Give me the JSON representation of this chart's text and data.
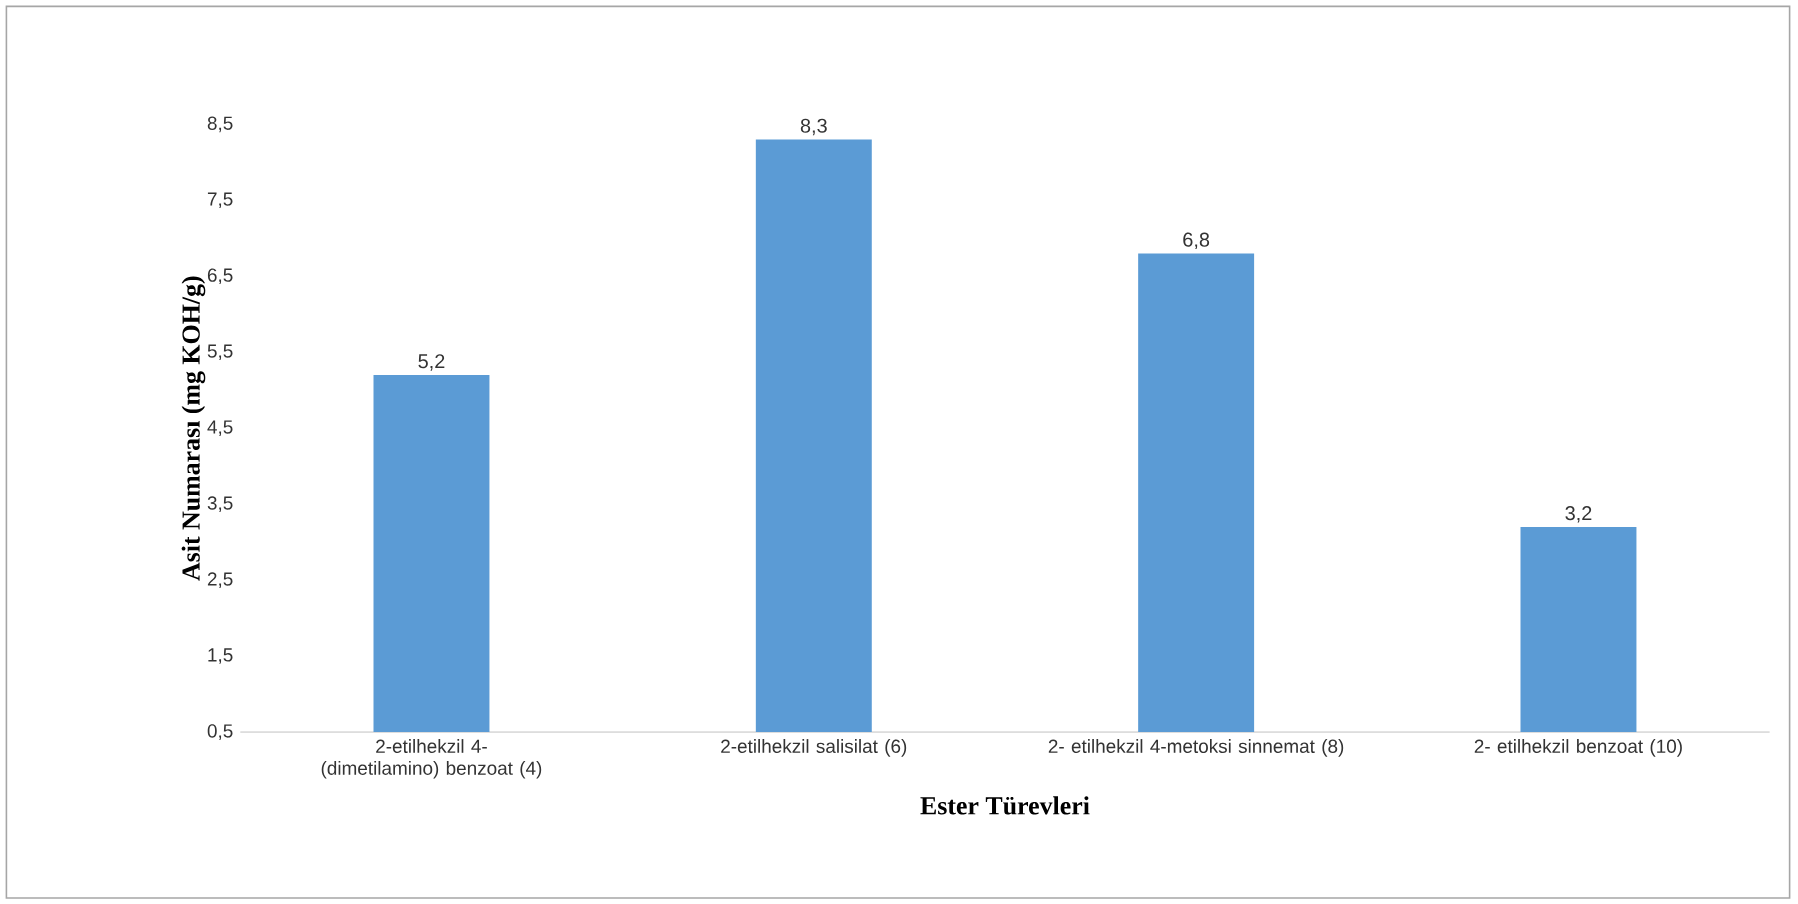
{
  "chart_data": {
    "type": "bar",
    "xlabel": "Ester Türevleri",
    "ylabel": "Asit Numarası (mg KOH/g)",
    "categories": [
      "2-etilhekzil 4-(dimetilamino) benzoat (4)",
      "2-etilhekzil salisilat (6)",
      "2- etilhekzil 4-metoksi sinnemat (8)",
      "2- etilhekzil benzoat (10)"
    ],
    "values": [
      5.2,
      8.3,
      6.8,
      3.2
    ],
    "value_labels": [
      "5,2",
      "8,3",
      "6,8",
      "3,2"
    ],
    "color": "#5b9bd5",
    "ylim": [
      0.5,
      8.5
    ],
    "yticks": [
      {
        "value": 0.5,
        "label": "0,5"
      },
      {
        "value": 1.5,
        "label": "1,5"
      },
      {
        "value": 2.5,
        "label": "2,5"
      },
      {
        "value": 3.5,
        "label": "3,5"
      },
      {
        "value": 4.5,
        "label": "4,5"
      },
      {
        "value": 5.5,
        "label": "5,5"
      },
      {
        "value": 6.5,
        "label": "6,5"
      },
      {
        "value": 7.5,
        "label": "7,5"
      },
      {
        "value": 8.5,
        "label": "8,5"
      }
    ],
    "grid": false
  }
}
